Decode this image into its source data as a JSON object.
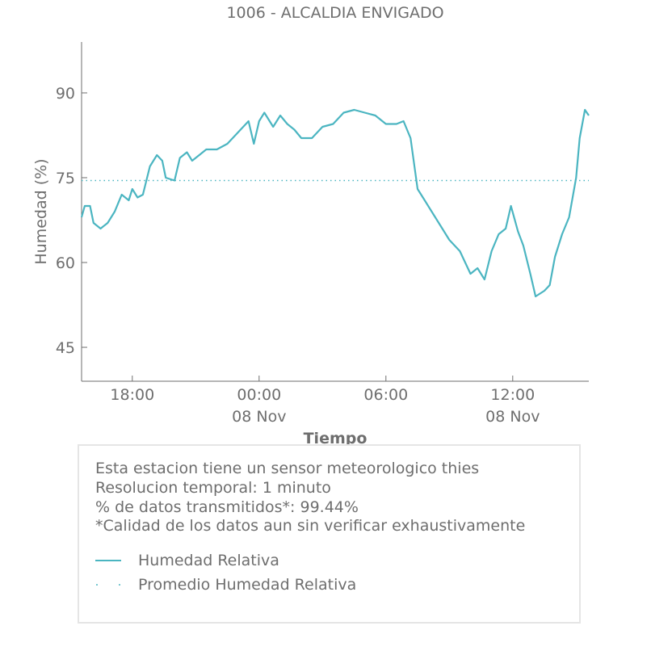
{
  "chart_data": {
    "type": "line",
    "title": "1006 - ALCALDIA ENVIGADO",
    "xlabel": "Tiempo",
    "ylabel": "Humedad (%)",
    "xlim": [
      "2018-11-07 15:36",
      "2018-11-08 15:36"
    ],
    "ylim": [
      39,
      99
    ],
    "yticks": [
      45,
      60,
      75,
      90
    ],
    "xticks": [
      {
        "t": "2018-11-07 18:00",
        "label": "18:00",
        "sub": ""
      },
      {
        "t": "2018-11-08 00:00",
        "label": "00:00",
        "sub": "08 Nov"
      },
      {
        "t": "2018-11-08 06:00",
        "label": "06:00",
        "sub": ""
      },
      {
        "t": "2018-11-08 12:00",
        "label": "12:00",
        "sub": "08 Nov"
      }
    ],
    "series": [
      {
        "name": "Humedad Relativa",
        "style": "solid",
        "color": "#4bb5c1",
        "points": [
          [
            "2018-11-07 15:36",
            68
          ],
          [
            "2018-11-07 15:45",
            70
          ],
          [
            "2018-11-07 16:00",
            70
          ],
          [
            "2018-11-07 16:10",
            67
          ],
          [
            "2018-11-07 16:30",
            66
          ],
          [
            "2018-11-07 16:50",
            67
          ],
          [
            "2018-11-07 17:10",
            69
          ],
          [
            "2018-11-07 17:30",
            72
          ],
          [
            "2018-11-07 17:50",
            71
          ],
          [
            "2018-11-07 18:00",
            73
          ],
          [
            "2018-11-07 18:15",
            71.5
          ],
          [
            "2018-11-07 18:30",
            72
          ],
          [
            "2018-11-07 18:50",
            77
          ],
          [
            "2018-11-07 19:10",
            79
          ],
          [
            "2018-11-07 19:25",
            78
          ],
          [
            "2018-11-07 19:35",
            75
          ],
          [
            "2018-11-07 20:00",
            74.5
          ],
          [
            "2018-11-07 20:15",
            78.5
          ],
          [
            "2018-11-07 20:35",
            79.5
          ],
          [
            "2018-11-07 20:50",
            78
          ],
          [
            "2018-11-07 21:10",
            79
          ],
          [
            "2018-11-07 21:30",
            80
          ],
          [
            "2018-11-07 22:00",
            80
          ],
          [
            "2018-11-07 22:30",
            81
          ],
          [
            "2018-11-07 23:00",
            83
          ],
          [
            "2018-11-07 23:30",
            85
          ],
          [
            "2018-11-07 23:45",
            81
          ],
          [
            "2018-11-08 00:00",
            85
          ],
          [
            "2018-11-08 00:15",
            86.5
          ],
          [
            "2018-11-08 00:40",
            84
          ],
          [
            "2018-11-08 01:00",
            86
          ],
          [
            "2018-11-08 01:20",
            84.5
          ],
          [
            "2018-11-08 01:40",
            83.5
          ],
          [
            "2018-11-08 02:00",
            82
          ],
          [
            "2018-11-08 02:30",
            82
          ],
          [
            "2018-11-08 03:00",
            84
          ],
          [
            "2018-11-08 03:30",
            84.5
          ],
          [
            "2018-11-08 04:00",
            86.5
          ],
          [
            "2018-11-08 04:30",
            87
          ],
          [
            "2018-11-08 05:00",
            86.5
          ],
          [
            "2018-11-08 05:30",
            86
          ],
          [
            "2018-11-08 06:00",
            84.5
          ],
          [
            "2018-11-08 06:30",
            84.5
          ],
          [
            "2018-11-08 06:50",
            85
          ],
          [
            "2018-11-08 07:10",
            82
          ],
          [
            "2018-11-08 07:30",
            73
          ],
          [
            "2018-11-08 07:50",
            71
          ],
          [
            "2018-11-08 08:10",
            69
          ],
          [
            "2018-11-08 08:40",
            66
          ],
          [
            "2018-11-08 09:00",
            64
          ],
          [
            "2018-11-08 09:30",
            62
          ],
          [
            "2018-11-08 10:00",
            58
          ],
          [
            "2018-11-08 10:20",
            59
          ],
          [
            "2018-11-08 10:40",
            57
          ],
          [
            "2018-11-08 11:00",
            62
          ],
          [
            "2018-11-08 11:20",
            65
          ],
          [
            "2018-11-08 11:40",
            66
          ],
          [
            "2018-11-08 11:55",
            70
          ],
          [
            "2018-11-08 12:15",
            65.5
          ],
          [
            "2018-11-08 12:30",
            63
          ],
          [
            "2018-11-08 12:50",
            58
          ],
          [
            "2018-11-08 13:05",
            54
          ],
          [
            "2018-11-08 13:30",
            55
          ],
          [
            "2018-11-08 13:45",
            56
          ],
          [
            "2018-11-08 14:00",
            61
          ],
          [
            "2018-11-08 14:20",
            65
          ],
          [
            "2018-11-08 14:40",
            68
          ],
          [
            "2018-11-08 15:00",
            75
          ],
          [
            "2018-11-08 15:10",
            82
          ],
          [
            "2018-11-08 15:25",
            87
          ],
          [
            "2018-11-08 15:36",
            86
          ]
        ]
      },
      {
        "name": "Promedio Humedad Relativa",
        "style": "dotted",
        "color": "#4bb5c1",
        "points": [
          [
            "2018-11-07 15:36",
            74.5
          ],
          [
            "2018-11-08 15:36",
            74.5
          ]
        ]
      }
    ]
  },
  "info": {
    "lines": [
      "Esta estacion tiene un sensor meteorologico thies",
      "Resolucion temporal: 1 minuto",
      "% de datos transmitidos*: 99.44%",
      "*Calidad de los datos aun sin verificar exhaustivamente"
    ]
  },
  "legend": {
    "items": [
      {
        "label": "Humedad Relativa",
        "style": "solid",
        "color": "#4bb5c1"
      },
      {
        "label": "Promedio Humedad Relativa",
        "style": "dotted",
        "color": "#4bb5c1"
      }
    ]
  },
  "colors": {
    "text": "#6e6e6e",
    "axis": "#6e6e6e",
    "line": "#4bb5c1",
    "legend_border": "#e5e5e5"
  }
}
